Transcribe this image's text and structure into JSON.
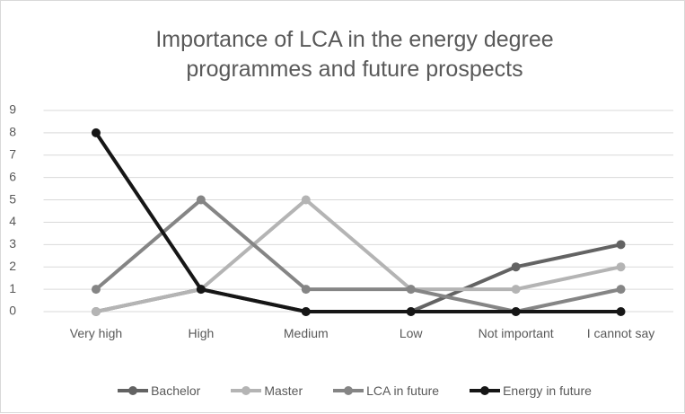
{
  "chart_data": {
    "type": "line",
    "title": "Importance of LCA in the energy degree programmes and future prospects",
    "categories": [
      "Very high",
      "High",
      "Medium",
      "Low",
      "Not important",
      "I cannot say"
    ],
    "series": [
      {
        "name": "Bachelor",
        "color": "#636363",
        "values": [
          0,
          1,
          0,
          0,
          2,
          3
        ]
      },
      {
        "name": "Master",
        "color": "#b4b4b4",
        "values": [
          0,
          1,
          5,
          1,
          1,
          2
        ]
      },
      {
        "name": "LCA in future",
        "color": "#858585",
        "values": [
          1,
          5,
          1,
          1,
          0,
          1
        ]
      },
      {
        "name": "Energy in future",
        "color": "#161616",
        "values": [
          8,
          1,
          0,
          0,
          0,
          0
        ]
      }
    ],
    "ylim": [
      0,
      9
    ],
    "yticks": [
      0,
      1,
      2,
      3,
      4,
      5,
      6,
      7,
      8,
      9
    ],
    "grid": true,
    "legend": "bottom"
  }
}
